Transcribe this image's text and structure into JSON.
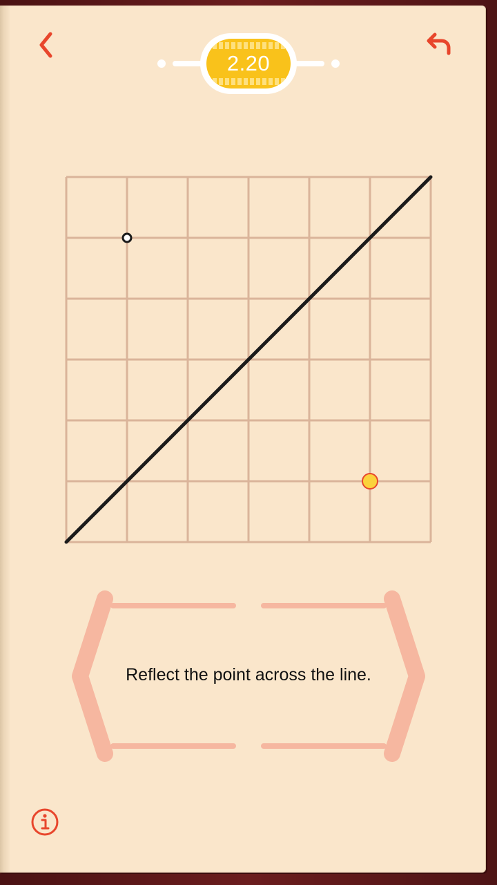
{
  "header": {
    "back_icon": "chevron-left-icon",
    "undo_icon": "undo-icon",
    "level": "2.20"
  },
  "puzzle": {
    "grid": {
      "columns": 6,
      "rows": 6
    },
    "line": {
      "from": [
        0,
        0
      ],
      "to": [
        6,
        6
      ]
    },
    "point": {
      "x": 5,
      "y": 1,
      "color": "#fbd23c",
      "stroke": "#e8462c"
    },
    "target_marker": {
      "x": 1,
      "y": 5
    }
  },
  "instruction": "Reflect the point across the line.",
  "footer": {
    "info_icon": "info-icon"
  },
  "colors": {
    "accent": "#e8462c",
    "page": "#fae6cb",
    "grid": "#dab49a",
    "bracket": "#f6b7a0",
    "badge": "#f9c21b"
  }
}
